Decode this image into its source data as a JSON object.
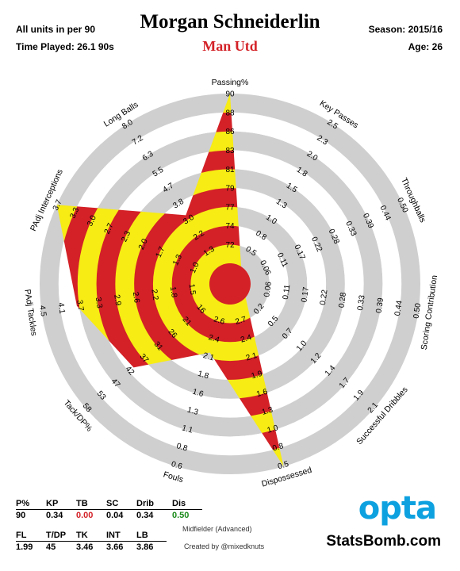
{
  "header": {
    "units_note": "All units in per 90",
    "time_played": "Time Played: 26.1 90s",
    "player": "Morgan Schneiderlin",
    "team": "Man Utd",
    "season": "Season: 2015/16",
    "age": "Age: 26"
  },
  "colors": {
    "ring_red": "#d32127",
    "ring_yellow": "#f7ec13",
    "ring_grey": "#cfcfcf",
    "team": "#d32127",
    "opta_blue": "#0da1e0",
    "pos_value": "#1a8a1a",
    "neg_value": "#d32127"
  },
  "chart_data": {
    "type": "radar",
    "axes": [
      {
        "name": "Passing%",
        "value": 90,
        "ticks": [
          "72",
          "74",
          "77",
          "79",
          "81",
          "83",
          "86",
          "88",
          "90"
        ]
      },
      {
        "name": "Key Passes",
        "value": 0.34,
        "ticks": [
          "0.5",
          "0.8",
          "1.0",
          "1.3",
          "1.5",
          "1.8",
          "2.0",
          "2.3",
          "2.5"
        ]
      },
      {
        "name": "Throughballs",
        "value": 0.0,
        "ticks": [
          "0.06",
          "0.11",
          "0.17",
          "0.22",
          "0.28",
          "0.33",
          "0.39",
          "0.44",
          "0.50"
        ]
      },
      {
        "name": "Scoring Contribution",
        "value": 0.04,
        "ticks": [
          "0.06",
          "0.11",
          "0.17",
          "0.22",
          "0.28",
          "0.33",
          "0.39",
          "0.44",
          "0.50"
        ]
      },
      {
        "name": "Successful Dribbles",
        "value": 0.34,
        "ticks": [
          "0.2",
          "0.5",
          "0.7",
          "1.0",
          "1.2",
          "1.4",
          "1.7",
          "1.9",
          "2.1"
        ]
      },
      {
        "name": "Dispossessed",
        "value": 0.5,
        "ticks": [
          "2.7",
          "2.4",
          "2.1",
          "1.9",
          "1.6",
          "1.3",
          "1.0",
          "0.8",
          "0.5"
        ]
      },
      {
        "name": "Fouls",
        "value": 1.99,
        "ticks": [
          "2.6",
          "2.4",
          "2.1",
          "1.8",
          "1.6",
          "1.3",
          "1.1",
          "0.8",
          "0.6"
        ]
      },
      {
        "name": "Tack/DP%",
        "value": 45,
        "ticks": [
          "16",
          "21",
          "26",
          "31",
          "37",
          "42",
          "47",
          "53",
          "58"
        ]
      },
      {
        "name": "PAdj Tackles",
        "value": 3.46,
        "ticks": [
          "1.5",
          "1.8",
          "2.2",
          "2.6",
          "2.9",
          "3.3",
          "3.7",
          "4.1",
          "4.5"
        ]
      },
      {
        "name": "PAdj Interceptions",
        "value": 3.66,
        "ticks": [
          "1.0",
          "1.3",
          "1.7",
          "2.0",
          "2.3",
          "2.7",
          "3.0",
          "3.3",
          "3.7"
        ]
      },
      {
        "name": "Long Balls",
        "value": 3.86,
        "ticks": [
          "1.3",
          "2.2",
          "3.0",
          "3.8",
          "4.7",
          "5.5",
          "6.3",
          "7.2",
          "8.0"
        ]
      }
    ],
    "polygon_fraction": [
      1.0,
      0.0,
      0.0,
      0.0,
      0.0,
      1.0,
      0.3,
      0.63,
      0.79,
      1.0,
      0.36
    ]
  },
  "stats": {
    "row1_headers": [
      "P%",
      "KP",
      "TB",
      "SC",
      "Drib",
      "Dis"
    ],
    "row1_values": [
      "90",
      "0.34",
      "0.00",
      "0.04",
      "0.34",
      "0.50"
    ],
    "row2_headers": [
      "FL",
      "T/DP",
      "TK",
      "INT",
      "LB"
    ],
    "row2_values": [
      "1.99",
      "45",
      "3.46",
      "3.66",
      "3.86"
    ]
  },
  "footer": {
    "position": "Midfielder (Advanced)",
    "credit": "Created by @mixedknuts",
    "opta_logo": "opta",
    "site": "StatsBomb.com"
  }
}
